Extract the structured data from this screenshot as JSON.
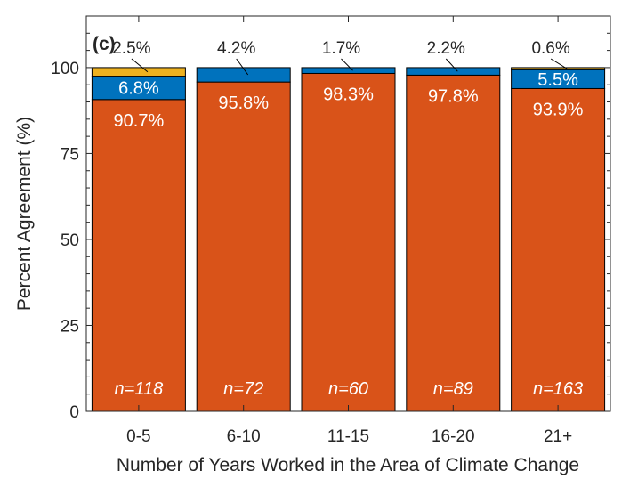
{
  "panel_label": "(c)",
  "colors": {
    "agree": "#D95319",
    "neutral": "#0072BD",
    "disagree": "#EDB120",
    "axis": "#262626",
    "background": "#ffffff"
  },
  "chart_data": {
    "type": "bar",
    "stacked": true,
    "title": "",
    "xlabel": "Number of Years Worked in the Area of Climate Change",
    "ylabel": "Percent Agreement (%)",
    "ylim": [
      0,
      115
    ],
    "yticks": [
      0,
      25,
      50,
      75,
      100
    ],
    "grid": false,
    "categories": [
      "0-5",
      "6-10",
      "11-15",
      "16-20",
      "21+"
    ],
    "sample_sizes": [
      "n=118",
      "n=72",
      "n=60",
      "n=89",
      "n=163"
    ],
    "series": [
      {
        "values": [
          90.7,
          95.8,
          98.3,
          97.8,
          93.9
        ],
        "labels": [
          "90.7%",
          "95.8%",
          "98.3%",
          "97.8%",
          "93.9%"
        ],
        "color": "#D95319"
      },
      {
        "values": [
          6.8,
          4.2,
          1.7,
          2.2,
          5.5
        ],
        "labels": [
          "6.8%",
          "4.2%",
          "1.7%",
          "2.2%",
          "5.5%"
        ],
        "color": "#0072BD"
      },
      {
        "values": [
          2.5,
          0,
          0,
          0,
          0.6
        ],
        "labels": [
          "2.5%",
          "",
          "",
          "",
          "0.6%"
        ],
        "color": "#EDB120"
      }
    ]
  }
}
